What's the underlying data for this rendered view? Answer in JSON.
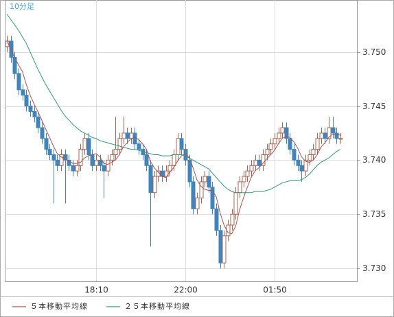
{
  "chart_data": {
    "type": "candlestick",
    "title": "10分足",
    "categories": [
      null,
      null,
      null,
      null,
      null,
      null,
      null,
      null,
      null,
      null,
      null,
      null,
      null,
      null,
      null,
      null,
      null,
      null,
      null,
      null,
      null,
      null,
      null,
      "18:10",
      null,
      null,
      null,
      null,
      null,
      null,
      null,
      null,
      null,
      null,
      null,
      null,
      null,
      null,
      null,
      null,
      null,
      null,
      null,
      null,
      null,
      null,
      "22:00",
      null,
      null,
      null,
      null,
      null,
      null,
      null,
      null,
      null,
      null,
      null,
      null,
      null,
      null,
      null,
      null,
      null,
      null,
      null,
      null,
      null,
      null,
      "01:50",
      null,
      null,
      null,
      null,
      null,
      null,
      null,
      null,
      null,
      null,
      null,
      null,
      null,
      null,
      null,
      null,
      null
    ],
    "open": [
      3.7505,
      3.751,
      3.7495,
      3.748,
      3.7465,
      3.746,
      3.745,
      3.7445,
      3.744,
      3.743,
      3.742,
      3.741,
      3.7405,
      3.74,
      3.7395,
      3.7405,
      3.74,
      3.7395,
      3.739,
      3.7395,
      3.741,
      3.742,
      3.7405,
      3.7395,
      3.74,
      3.7395,
      3.739,
      3.74,
      3.7405,
      3.741,
      3.742,
      3.7425,
      3.742,
      3.7425,
      3.7415,
      3.741,
      3.7405,
      3.7395,
      3.737,
      3.7385,
      3.739,
      3.7385,
      3.739,
      3.7395,
      3.7405,
      3.742,
      3.741,
      3.74,
      3.738,
      3.7355,
      3.7365,
      3.738,
      3.7385,
      3.7375,
      3.7355,
      3.7335,
      3.7305,
      3.733,
      3.734,
      3.735,
      3.737,
      3.738,
      3.7385,
      3.739,
      3.7395,
      3.74,
      3.7395,
      3.7405,
      3.741,
      3.7415,
      3.742,
      3.7425,
      3.743,
      3.742,
      3.741,
      3.74,
      3.7395,
      3.739,
      3.74,
      3.7405,
      3.741,
      3.742,
      3.7425,
      3.742,
      3.743,
      3.7425,
      3.742
    ],
    "high": [
      3.7515,
      3.7515,
      3.75,
      3.7485,
      3.747,
      3.7465,
      3.7455,
      3.745,
      3.7445,
      3.7435,
      3.7425,
      3.7415,
      3.741,
      3.7405,
      3.741,
      3.741,
      3.7405,
      3.74,
      3.74,
      3.7415,
      3.7425,
      3.7425,
      3.741,
      3.7405,
      3.7405,
      3.74,
      3.7405,
      3.741,
      3.744,
      3.7425,
      3.744,
      3.743,
      3.743,
      3.743,
      3.742,
      3.7415,
      3.741,
      3.74,
      3.739,
      3.7395,
      3.7395,
      3.7395,
      3.74,
      3.741,
      3.7425,
      3.7425,
      3.7415,
      3.7405,
      3.7385,
      3.737,
      3.7385,
      3.739,
      3.739,
      3.738,
      3.736,
      3.734,
      3.7335,
      3.7345,
      3.7355,
      3.7375,
      3.7385,
      3.739,
      3.7395,
      3.74,
      3.7405,
      3.7405,
      3.741,
      3.7415,
      3.742,
      3.7425,
      3.743,
      3.7435,
      3.7435,
      3.7425,
      3.7415,
      3.7405,
      3.74,
      3.7405,
      3.741,
      3.7415,
      3.7425,
      3.743,
      3.743,
      3.744,
      3.744,
      3.743,
      3.7425
    ],
    "low": [
      3.75,
      3.749,
      3.7475,
      3.746,
      3.7455,
      3.7445,
      3.744,
      3.7435,
      3.7425,
      3.7415,
      3.7405,
      3.74,
      3.736,
      3.739,
      3.739,
      3.736,
      3.739,
      3.7385,
      3.7385,
      3.739,
      3.7405,
      3.74,
      3.739,
      3.739,
      3.739,
      3.7365,
      3.7385,
      3.7395,
      3.74,
      3.7405,
      3.7415,
      3.7415,
      3.7415,
      3.741,
      3.7405,
      3.74,
      3.739,
      3.732,
      3.7365,
      3.738,
      3.738,
      3.738,
      3.7385,
      3.739,
      3.74,
      3.7405,
      3.7395,
      3.7375,
      3.735,
      3.735,
      3.736,
      3.7375,
      3.737,
      3.735,
      3.733,
      3.73,
      3.73,
      3.7325,
      3.7335,
      3.7345,
      3.7365,
      3.7375,
      3.738,
      3.7385,
      3.739,
      3.739,
      3.739,
      3.74,
      3.7405,
      3.741,
      3.7415,
      3.742,
      3.7415,
      3.7405,
      3.7395,
      3.739,
      3.738,
      3.7385,
      3.7395,
      3.74,
      3.7405,
      3.7415,
      3.7415,
      3.7415,
      3.742,
      3.7415,
      3.7415
    ],
    "close": [
      3.751,
      3.7495,
      3.748,
      3.7465,
      3.746,
      3.745,
      3.7445,
      3.744,
      3.743,
      3.742,
      3.741,
      3.7405,
      3.74,
      3.7395,
      3.7405,
      3.74,
      3.7395,
      3.739,
      3.7395,
      3.741,
      3.742,
      3.7405,
      3.7395,
      3.74,
      3.7395,
      3.739,
      3.74,
      3.7405,
      3.741,
      3.742,
      3.7425,
      3.742,
      3.7425,
      3.7415,
      3.741,
      3.7405,
      3.7395,
      3.737,
      3.7385,
      3.739,
      3.7385,
      3.739,
      3.7395,
      3.7405,
      3.742,
      3.741,
      3.74,
      3.738,
      3.7355,
      3.7365,
      3.738,
      3.7385,
      3.7375,
      3.7355,
      3.7335,
      3.7305,
      3.733,
      3.734,
      3.735,
      3.737,
      3.738,
      3.7385,
      3.739,
      3.7395,
      3.74,
      3.7395,
      3.7405,
      3.741,
      3.7415,
      3.742,
      3.7425,
      3.743,
      3.742,
      3.741,
      3.74,
      3.7395,
      3.739,
      3.74,
      3.7405,
      3.741,
      3.742,
      3.7425,
      3.742,
      3.743,
      3.7425,
      3.742,
      3.742
    ],
    "up_color": "#b0604c",
    "down_color": "#3f84bd",
    "series": [
      {
        "name": "５本移動平均線",
        "color": "#b0504a",
        "values": [
          3.751,
          3.7503,
          3.7495,
          3.7488,
          3.7482,
          3.747,
          3.746,
          3.7452,
          3.7445,
          3.7437,
          3.7429,
          3.7421,
          3.7413,
          3.7406,
          3.7403,
          3.7401,
          3.7399,
          3.7397,
          3.7397,
          3.7398,
          3.7402,
          3.7404,
          3.7405,
          3.7406,
          3.7403,
          3.7397,
          3.7396,
          3.7398,
          3.74,
          3.7405,
          3.7412,
          3.7416,
          3.742,
          3.7421,
          3.7419,
          3.7415,
          3.741,
          3.7399,
          3.7393,
          3.7389,
          3.7385,
          3.7384,
          3.7389,
          3.7393,
          3.7399,
          3.7404,
          3.7406,
          3.7403,
          3.7393,
          3.7382,
          3.7376,
          3.7373,
          3.7372,
          3.7372,
          3.7366,
          3.7351,
          3.734,
          3.7333,
          3.7332,
          3.7339,
          3.7354,
          3.7365,
          3.7375,
          3.7384,
          3.739,
          3.7393,
          3.7397,
          3.7401,
          3.7405,
          3.7409,
          3.7415,
          3.742,
          3.7422,
          3.7421,
          3.7417,
          3.7411,
          3.7403,
          3.7399,
          3.7398,
          3.74,
          3.7405,
          3.7412,
          3.7416,
          3.7421,
          3.7424,
          3.7424,
          3.7423
        ]
      },
      {
        "name": "２５本移動平均線",
        "color": "#2a9a7a",
        "values": [
          3.7535,
          3.753,
          3.7525,
          3.752,
          3.7514,
          3.7508,
          3.75,
          3.7492,
          3.7484,
          3.7477,
          3.747,
          3.7464,
          3.7458,
          3.7452,
          3.7446,
          3.7441,
          3.7437,
          3.7433,
          3.743,
          3.7427,
          3.7425,
          3.7423,
          3.7421,
          3.742,
          3.7418,
          3.7417,
          3.7416,
          3.7415,
          3.7414,
          3.7413,
          3.7412,
          3.7411,
          3.741,
          3.741,
          3.7409,
          3.7408,
          3.7407,
          3.7406,
          3.7405,
          3.7405,
          3.7404,
          3.7404,
          3.7404,
          3.7405,
          3.7405,
          3.7405,
          3.7404,
          3.7402,
          3.74,
          3.7398,
          3.7396,
          3.7394,
          3.7392,
          3.7388,
          3.7384,
          3.738,
          3.7376,
          3.7373,
          3.7371,
          3.737,
          3.737,
          3.737,
          3.737,
          3.737,
          3.7371,
          3.7371,
          3.7371,
          3.7372,
          3.7373,
          3.7375,
          3.7377,
          3.7379,
          3.738,
          3.7381,
          3.7381,
          3.7381,
          3.7382,
          3.7384,
          3.7387,
          3.7391,
          3.7395,
          3.7398,
          3.74,
          3.7402,
          3.7405,
          3.7408,
          3.741
        ]
      }
    ],
    "ylim": [
      3.7288,
      3.7548
    ],
    "yticks": [
      {
        "value": 3.73,
        "label": "3.730"
      },
      {
        "value": 3.735,
        "label": "3.735"
      },
      {
        "value": 3.74,
        "label": "3.740"
      },
      {
        "value": 3.745,
        "label": "3.745"
      },
      {
        "value": 3.75,
        "label": "3.750"
      }
    ],
    "grid": true
  }
}
